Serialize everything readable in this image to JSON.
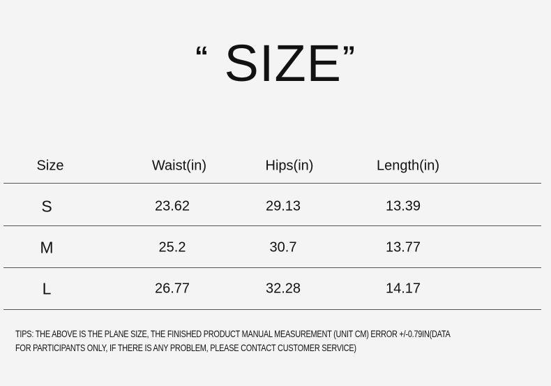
{
  "title": {
    "open_quote": "“",
    "text": "SIZE",
    "close_quote": "”"
  },
  "table": {
    "headers": [
      "Size",
      "Waist(in)",
      "Hips(in)",
      "Length(in)"
    ],
    "rows": [
      [
        "S",
        "23.62",
        "29.13",
        "13.39"
      ],
      [
        "M",
        "25.2",
        "30.7",
        "13.77"
      ],
      [
        "L",
        "26.77",
        "32.28",
        "14.17"
      ]
    ]
  },
  "tips": {
    "line1": "TIPS: THE ABOVE IS THE PLANE SIZE, THE FINISHED PRODUCT MANUAL MEASUREMENT (UNIT CM) ERROR +/-0.79IN(DATA",
    "line2": "FOR PARTICIPANTS ONLY, IF THERE IS ANY PROBLEM, PLEASE CONTACT CUSTOMER SERVICE)"
  }
}
